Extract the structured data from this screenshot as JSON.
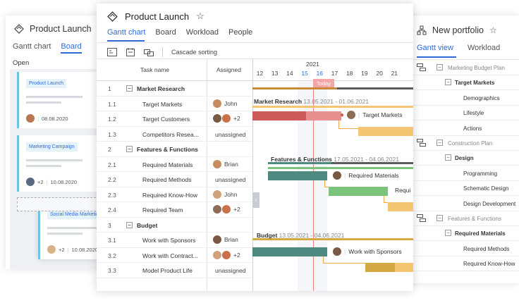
{
  "left": {
    "title": "Product Launch",
    "tabs": [
      "Gantt chart",
      "Board"
    ],
    "column": "Open",
    "cards": [
      {
        "tag": "Product Launch",
        "date": "08.08.2020"
      },
      {
        "tag": "Marketing Campaign",
        "count": "+2",
        "date": "10.08.2020"
      },
      {
        "tag": "Social Media Marketin",
        "count": "+2",
        "date": "10.08.2020"
      }
    ]
  },
  "main": {
    "title": "Product Launch",
    "tabs": [
      "Gantt chart",
      "Board",
      "Workload",
      "People"
    ],
    "toolbar_label": "Cascade sorting",
    "col_task": "Task name",
    "col_assigned": "Assigned",
    "year": "2021",
    "days": [
      "12",
      "13",
      "14",
      "15",
      "16",
      "17",
      "18",
      "19",
      "20",
      "21"
    ],
    "today_label": "Today",
    "rows": [
      {
        "num": "1",
        "name": "Market Research",
        "group": true
      },
      {
        "num": "1.1",
        "name": "Target Markets",
        "assigned": "John"
      },
      {
        "num": "1.2",
        "name": "Target Customers",
        "assigned": "+2"
      },
      {
        "num": "1.3",
        "name": "Competitors Resea...",
        "assigned": "unassigned"
      },
      {
        "num": "2",
        "name": "Features & Functions",
        "group": true
      },
      {
        "num": "2.1",
        "name": "Required Materials",
        "assigned": "Brian"
      },
      {
        "num": "2.2",
        "name": "Required Methods",
        "assigned": "unassigned"
      },
      {
        "num": "2.3",
        "name": "Required Know-How",
        "assigned": "John"
      },
      {
        "num": "2.4",
        "name": "Required Team",
        "assigned": "+2"
      },
      {
        "num": "3",
        "name": "Budget",
        "group": true
      },
      {
        "num": "3.1",
        "name": "Work with Sponsors",
        "assigned": "Brian"
      },
      {
        "num": "3.2",
        "name": "Work with Contract...",
        "assigned": "+2"
      },
      {
        "num": "3.3",
        "name": "Model Product Life",
        "assigned": "unassigned"
      }
    ],
    "summaries": [
      {
        "name": "Market Research",
        "dates": "13.05.2021 - 01.06.2021"
      },
      {
        "name": "Features & Functions",
        "dates": "17.05.2021 - 04.06.2021"
      },
      {
        "name": "Budget",
        "dates": "13.05.2021 - 04.06.2021"
      }
    ],
    "bar_labels": [
      "Target Markets",
      "Required Materials",
      "Requi",
      "Work with Sponsors"
    ]
  },
  "right": {
    "title": "New portfolio",
    "tabs": [
      "Gantt view",
      "Workload"
    ],
    "rows": [
      {
        "label": "Marketing Budget Plan",
        "kind": "project"
      },
      {
        "label": "Target Markets",
        "kind": "group"
      },
      {
        "label": "Demographics",
        "kind": "task"
      },
      {
        "label": "Lifestyle",
        "kind": "task"
      },
      {
        "label": "Actions",
        "kind": "task"
      },
      {
        "label": "Construction Plan",
        "kind": "project"
      },
      {
        "label": "Design",
        "kind": "group"
      },
      {
        "label": "Programming",
        "kind": "task"
      },
      {
        "label": "Schematic Design",
        "kind": "task"
      },
      {
        "label": "Design Development",
        "kind": "task"
      },
      {
        "label": "Features & Functions",
        "kind": "project"
      },
      {
        "label": "Required Materials",
        "kind": "group"
      },
      {
        "label": "Required Methods",
        "kind": "task"
      },
      {
        "label": "Required Know-How",
        "kind": "task"
      }
    ]
  },
  "colors": {
    "accent": "#2f6bd8",
    "red_bar": "#cf5a5a",
    "orange_bar": "#f4c572",
    "teal_bar": "#4e8a7f",
    "green_bar": "#7cc47c",
    "budget_bar": "#d4a843",
    "today": "#f08080"
  }
}
